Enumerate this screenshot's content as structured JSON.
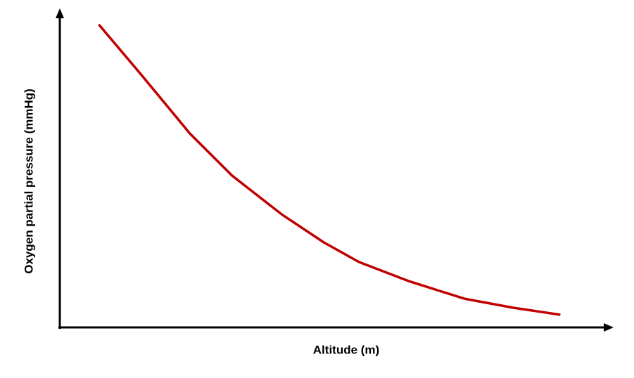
{
  "chart_data": {
    "type": "line",
    "x_label": "Altitude (m)",
    "y_label": "Oxygen partial pressure (mmHg)",
    "x": [
      7.1,
      14.7,
      23.7,
      31.4,
      40.4,
      48.1,
      54.5,
      63.5,
      73.7,
      82.7,
      91.2
    ],
    "values": [
      95.8,
      80.2,
      61.3,
      48,
      35.8,
      26.9,
      20.7,
      14.7,
      9.1,
      6.2,
      4
    ],
    "color": "#c00000",
    "xlim": [
      0,
      100
    ],
    "ylim": [
      0,
      100
    ]
  }
}
